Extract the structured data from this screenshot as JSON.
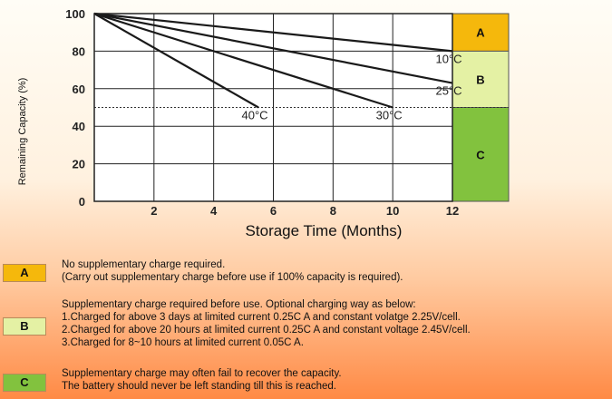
{
  "chart_data": {
    "type": "line",
    "xlabel": "Storage Time (Months)",
    "ylabel": "Remaining Capacity (%)",
    "xlim": [
      0,
      12
    ],
    "ylim": [
      0,
      100
    ],
    "x_ticks": [
      "2",
      "4",
      "6",
      "8",
      "10",
      "12"
    ],
    "y_ticks": [
      "0",
      "20",
      "40",
      "60",
      "80",
      "100"
    ],
    "grid": true,
    "reference_line_y": 50,
    "series": [
      {
        "name": "40°C",
        "x": [
          0,
          5.5
        ],
        "y": [
          100,
          50
        ]
      },
      {
        "name": "30°C",
        "x": [
          0,
          10
        ],
        "y": [
          100,
          50
        ]
      },
      {
        "name": "25°C",
        "x": [
          0,
          12
        ],
        "y": [
          100,
          63
        ]
      },
      {
        "name": "10°C",
        "x": [
          0,
          12
        ],
        "y": [
          100,
          80
        ]
      }
    ],
    "zones": [
      {
        "label": "A",
        "from": 80,
        "to": 100,
        "color": "#f5b80c"
      },
      {
        "label": "B",
        "from": 50,
        "to": 80,
        "color": "#e4f1a4"
      },
      {
        "label": "C",
        "from": 0,
        "to": 50,
        "color": "#82c23e"
      }
    ]
  },
  "legend": [
    {
      "label": "A",
      "color": "#f5b80c",
      "text": "No supplementary charge required.\n(Carry out supplementary charge before use if 100% capacity is required)."
    },
    {
      "label": "B",
      "color": "#e4f1a4",
      "text": "Supplementary charge required before use. Optional charging way as below:\n1.Charged for above 3 days at limited current 0.25C A and constant volatge 2.25V/cell.\n2.Charged for above 20 hours at limited current 0.25C A and constant voltage 2.45V/cell.\n3.Charged for 8~10 hours at limited current 0.05C A."
    },
    {
      "label": "C",
      "color": "#82c23e",
      "text": "Supplementary charge may often fail to recover the capacity.\nThe battery should never be left standing till this is reached."
    }
  ]
}
